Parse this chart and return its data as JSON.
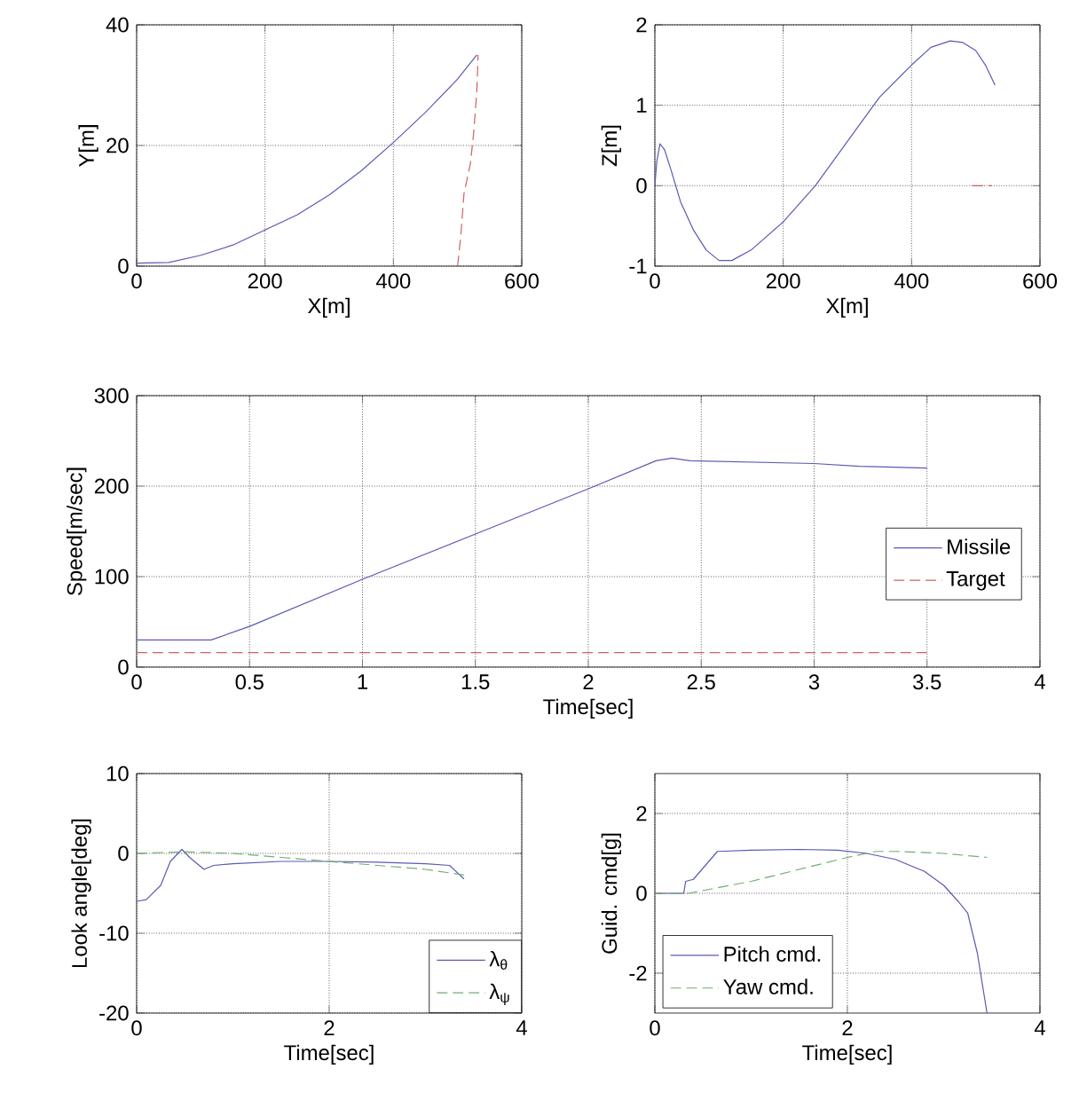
{
  "chart_data": [
    {
      "type": "line",
      "xlabel": "X[m]",
      "ylabel": "Y[m]",
      "xlim": [
        0,
        600
      ],
      "ylim": [
        0,
        40
      ],
      "xticks": [
        0,
        200,
        400,
        600
      ],
      "yticks": [
        0,
        20,
        40
      ],
      "grid": true,
      "marker": "none",
      "series": [
        {
          "color": "#5a5ab4",
          "line_style": "solid",
          "x": [
            0,
            50,
            100,
            150,
            200,
            250,
            300,
            350,
            400,
            450,
            500,
            530
          ],
          "values": [
            0.5,
            0.6,
            1.8,
            3.5,
            6,
            8.5,
            11.8,
            15.8,
            20.5,
            25.5,
            31,
            35
          ]
        },
        {
          "color": "#d06060",
          "line_style": "dashed",
          "x": [
            500,
            505,
            510,
            520,
            525,
            530,
            532
          ],
          "values": [
            0,
            5,
            12,
            17,
            22,
            29,
            35
          ]
        }
      ]
    },
    {
      "type": "line",
      "xlabel": "X[m]",
      "ylabel": "Z[m]",
      "xlim": [
        0,
        600
      ],
      "ylim": [
        -1,
        2
      ],
      "xticks": [
        0,
        200,
        400,
        600
      ],
      "yticks": [
        -1,
        0,
        1,
        2
      ],
      "grid": true,
      "marker": "none",
      "series": [
        {
          "color": "#5a5ab4",
          "line_style": "solid",
          "x": [
            0,
            3,
            8,
            15,
            25,
            40,
            60,
            80,
            100,
            120,
            150,
            200,
            250,
            300,
            350,
            400,
            430,
            460,
            480,
            500,
            515,
            530
          ],
          "values": [
            0,
            0.3,
            0.52,
            0.45,
            0.2,
            -0.2,
            -0.55,
            -0.8,
            -0.93,
            -0.93,
            -0.8,
            -0.45,
            0,
            0.55,
            1.1,
            1.5,
            1.72,
            1.8,
            1.78,
            1.68,
            1.5,
            1.25
          ]
        },
        {
          "color": "#d06060",
          "line_style": "dashed",
          "x": [
            495,
            525
          ],
          "values": [
            0,
            0
          ]
        }
      ]
    },
    {
      "type": "line",
      "xlabel": "Time[sec]",
      "ylabel": "Speed[m/sec]",
      "xlim": [
        0,
        4
      ],
      "ylim": [
        0,
        300
      ],
      "xticks": [
        0,
        0.5,
        1,
        1.5,
        2,
        2.5,
        3,
        3.5,
        4
      ],
      "yticks": [
        0,
        100,
        200,
        300
      ],
      "grid": true,
      "marker": "none",
      "legend": "right",
      "series": [
        {
          "name": "Missile",
          "color": "#5a5ab4",
          "line_style": "solid",
          "x": [
            0,
            0.33,
            0.5,
            1,
            1.5,
            2,
            2.3,
            2.37,
            2.45,
            3,
            3.2,
            3.5
          ],
          "values": [
            30,
            30,
            45,
            97,
            147,
            197,
            228,
            231,
            228,
            225,
            222,
            220
          ]
        },
        {
          "name": "Target",
          "color": "#d06060",
          "line_style": "dashed",
          "x": [
            0,
            3.5
          ],
          "values": [
            16,
            16
          ]
        }
      ]
    },
    {
      "type": "line",
      "xlabel": "Time[sec]",
      "ylabel": "Look angle[deg]",
      "xlim": [
        0,
        4
      ],
      "ylim": [
        -20,
        10
      ],
      "xticks": [
        0,
        2,
        4
      ],
      "yticks": [
        -20,
        -10,
        0,
        10
      ],
      "grid": true,
      "marker": "none",
      "legend": "bottom right",
      "series": [
        {
          "name": "λ$_{θ}$",
          "color": "#5a5ab4",
          "line_style": "solid",
          "x": [
            0,
            0.1,
            0.25,
            0.35,
            0.47,
            0.55,
            0.7,
            0.8,
            1,
            1.5,
            2,
            2.5,
            3,
            3.25,
            3.4
          ],
          "values": [
            -6,
            -5.8,
            -4,
            -1,
            0.5,
            -0.5,
            -2,
            -1.5,
            -1.3,
            -1,
            -1,
            -1.1,
            -1.3,
            -1.5,
            -3.2
          ]
        },
        {
          "name": "λ$_{ψ}$",
          "color": "#70b070",
          "line_style": "dashed",
          "x": [
            0,
            0.5,
            1,
            1.5,
            2,
            2.5,
            3,
            3.4
          ],
          "values": [
            0,
            0.2,
            0,
            -0.5,
            -1,
            -1.5,
            -2,
            -2.7
          ]
        }
      ]
    },
    {
      "type": "line",
      "xlabel": "Time[sec]",
      "ylabel": "Guid. cmd[g]",
      "xlim": [
        0,
        4
      ],
      "ylim": [
        -3,
        3
      ],
      "xticks": [
        0,
        2,
        4
      ],
      "yticks": [
        -2,
        0,
        2
      ],
      "grid": true,
      "marker": "none",
      "legend": "bottom left",
      "series": [
        {
          "name": "Pitch cmd.",
          "color": "#5a5ab4",
          "line_style": "solid",
          "x": [
            0,
            0.3,
            0.32,
            0.4,
            0.65,
            1,
            1.5,
            1.9,
            2.2,
            2.5,
            2.8,
            3.0,
            3.15,
            3.25,
            3.35,
            3.45
          ],
          "values": [
            0,
            0,
            0.3,
            0.35,
            1.05,
            1.08,
            1.1,
            1.08,
            1.0,
            0.85,
            0.55,
            0.2,
            -0.2,
            -0.5,
            -1.5,
            -3
          ]
        },
        {
          "name": "Yaw cmd.",
          "color": "#70b070",
          "line_style": "dashed",
          "x": [
            0,
            0.35,
            1,
            1.5,
            2,
            2.3,
            2.5,
            3,
            3.45
          ],
          "values": [
            0,
            0,
            0.3,
            0.6,
            0.9,
            1.05,
            1.05,
            1.0,
            0.9
          ]
        }
      ]
    }
  ]
}
